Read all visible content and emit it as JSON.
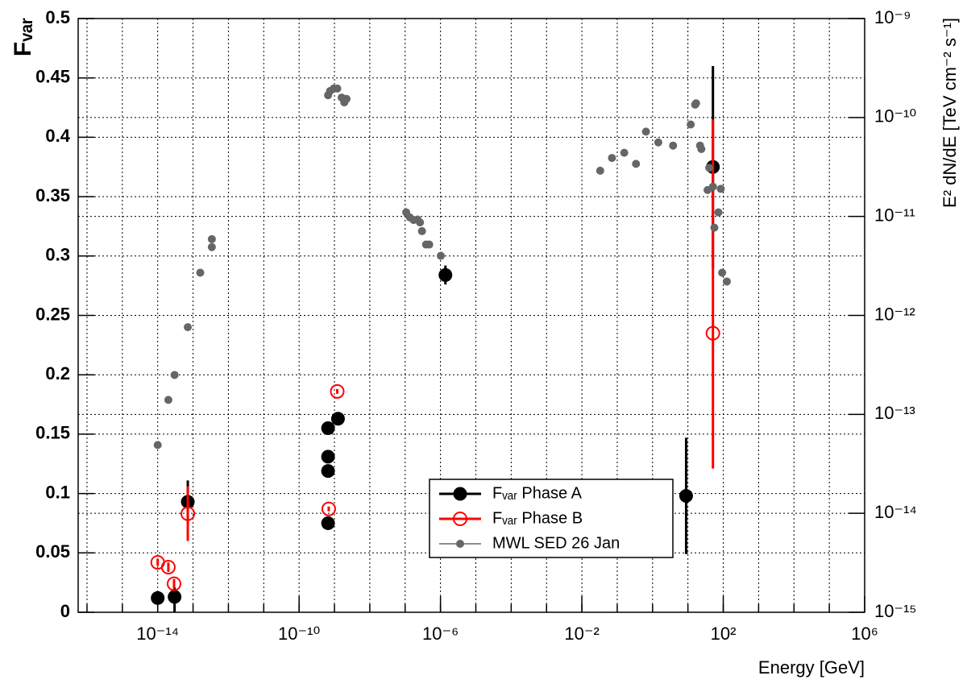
{
  "chart_data": {
    "type": "scatter",
    "xlabel": "Energy [GeV]",
    "ylabel": "Fᵥₐᵣ",
    "y2label": "E² dN/dE [TeV cm⁻² s⁻¹]",
    "xscale": "log",
    "y2scale": "log",
    "grid": true,
    "legend": "bottom-center",
    "xlim": [
      5.62e-17,
      1000000.0
    ],
    "xticks": [
      {
        "value": 1e-14,
        "label": "10⁻¹⁴"
      },
      {
        "value": 1e-10,
        "label": "10⁻¹⁰"
      },
      {
        "value": 1e-06,
        "label": "10⁻⁶"
      },
      {
        "value": 0.01,
        "label": "10⁻²"
      },
      {
        "value": 100,
        "label": "10²"
      },
      {
        "value": 1000000.0,
        "label": "10⁶"
      }
    ],
    "ylim": [
      0,
      0.5
    ],
    "yticks": [
      0,
      0.05,
      0.1,
      0.15,
      0.2,
      0.25,
      0.3,
      0.35,
      0.4,
      0.45,
      0.5
    ],
    "y2lim": [
      1e-15,
      1e-09
    ],
    "y2ticks": [
      {
        "value": 1e-15,
        "label": "10⁻¹⁵"
      },
      {
        "value": 1e-14,
        "label": "10⁻¹⁴"
      },
      {
        "value": 1e-13,
        "label": "10⁻¹³"
      },
      {
        "value": 1e-12,
        "label": "10⁻¹²"
      },
      {
        "value": 1e-11,
        "label": "10⁻¹¹"
      },
      {
        "value": 1e-10,
        "label": "10⁻¹⁰"
      },
      {
        "value": 1e-09,
        "label": "10⁻⁹"
      }
    ],
    "series": [
      {
        "name": "Fᵥₐᵣ Phase A",
        "color": "#000000",
        "marker": "filled",
        "x": [
          1e-14,
          3e-14,
          7.1e-14,
          6.6e-10,
          6.6e-10,
          6.6e-10,
          6.6e-10,
          1.26e-09,
          1.38e-06,
          8.9,
          51
        ],
        "values": [
          0.012,
          0.013,
          0.093,
          0.155,
          0.131,
          0.119,
          0.075,
          0.163,
          0.284,
          0.098,
          0.375
        ],
        "err_low": [
          0.002,
          0.013,
          0.018,
          0.003,
          0.003,
          0.004,
          0.002,
          0.002,
          0.008,
          0.049,
          0.085
        ],
        "err_high": [
          0.002,
          0.008,
          0.018,
          0.003,
          0.003,
          0.004,
          0.002,
          0.002,
          0.008,
          0.049,
          0.085
        ]
      },
      {
        "name": "Fᵥₐᵣ Phase B",
        "color": "#ff0000",
        "marker": "open",
        "x": [
          1e-14,
          2e-14,
          2.9e-14,
          7.1e-14,
          6.9e-10,
          1.2e-09,
          51
        ],
        "values": [
          0.042,
          0.038,
          0.024,
          0.083,
          0.087,
          0.186,
          0.235
        ],
        "err_low": [
          0.003,
          0.004,
          0.004,
          0.023,
          0.002,
          0.002,
          0.114
        ],
        "err_high": [
          0.003,
          0.004,
          0.004,
          0.023,
          0.002,
          0.002,
          0.18
        ]
      },
      {
        "name": "MWL SED 26 Jan",
        "color": "#666666",
        "marker": "small",
        "axis": "y2",
        "x": [
          1e-14,
          2e-14,
          3e-14,
          7.1e-14,
          1.6e-13,
          3.4e-13,
          3.4e-13,
          6.6e-10,
          7.5e-10,
          9.5e-10,
          1.2e-09,
          1.6e-09,
          1.9e-09,
          2.2e-09,
          1.07e-07,
          1.35e-07,
          1.74e-07,
          2.24e-07,
          2.63e-07,
          3e-07,
          3.9e-07,
          4.8e-07,
          1.02e-06,
          0.033,
          0.071,
          0.158,
          0.34,
          0.65,
          1.45,
          3.8,
          12,
          16,
          17,
          22,
          24,
          36,
          40,
          51,
          56,
          73,
          85,
          93,
          126
        ],
        "values": [
          4.9e-14,
          1.4e-13,
          2.5e-13,
          7.6e-13,
          2.7e-12,
          4.9e-12,
          5.9e-12,
          1.68e-10,
          1.85e-10,
          1.96e-10,
          1.96e-10,
          1.59e-10,
          1.42e-10,
          1.54e-10,
          1.1e-11,
          9.8e-12,
          9.2e-12,
          9.3e-12,
          8.7e-12,
          7.1e-12,
          5.2e-12,
          5.2e-12,
          4e-12,
          2.9e-11,
          3.9e-11,
          4.4e-11,
          3.4e-11,
          7.2e-11,
          5.6e-11,
          5.2e-11,
          8.5e-11,
          1.35e-10,
          1.39e-10,
          5.2e-11,
          4.8e-11,
          1.85e-11,
          3.1e-11,
          2e-11,
          7.7e-12,
          1.1e-11,
          1.9e-11,
          2.7e-12,
          2.2e-12
        ]
      }
    ]
  }
}
